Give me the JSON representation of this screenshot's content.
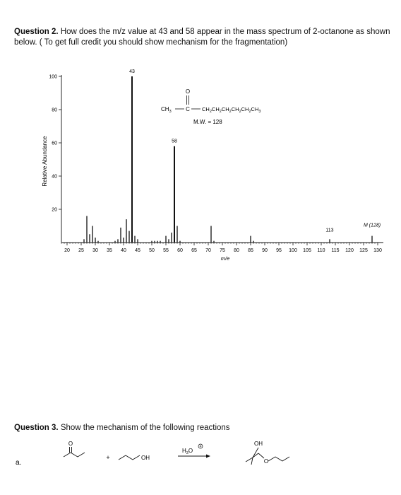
{
  "question2": {
    "label": "Question 2.",
    "text": "How does the m/z value at 43 and 58 appear in the mass spectrum of 2-octanone as shown below. ( To get full credit you should show mechanism for the fragmentation)"
  },
  "molecule": {
    "formula_left": "CH",
    "formula_left_sub": "3",
    "carbonyl_c": "C",
    "oxygen": "O",
    "chain_parts": [
      "CH",
      "2",
      "CH",
      "2",
      "CH",
      "2",
      "CH",
      "2",
      "CH",
      "2",
      "CH",
      "3"
    ],
    "mw": "M.W. = 128"
  },
  "chart_data": {
    "type": "bar",
    "xlabel": "m/e",
    "ylabel": "Relative Abundance",
    "xlim": [
      18,
      132
    ],
    "ylim": [
      0,
      100
    ],
    "x_ticks": [
      20,
      25,
      30,
      35,
      40,
      45,
      50,
      55,
      60,
      65,
      70,
      75,
      80,
      85,
      90,
      95,
      100,
      105,
      110,
      115,
      120,
      125,
      130
    ],
    "y_ticks": [
      20,
      40,
      60,
      80,
      100
    ],
    "peaks": [
      {
        "x": 26,
        "y": 2
      },
      {
        "x": 27,
        "y": 16
      },
      {
        "x": 28,
        "y": 5
      },
      {
        "x": 29,
        "y": 10
      },
      {
        "x": 30,
        "y": 3
      },
      {
        "x": 31,
        "y": 1
      },
      {
        "x": 37,
        "y": 1
      },
      {
        "x": 38,
        "y": 2
      },
      {
        "x": 39,
        "y": 9
      },
      {
        "x": 40,
        "y": 3
      },
      {
        "x": 41,
        "y": 14
      },
      {
        "x": 42,
        "y": 7
      },
      {
        "x": 43,
        "y": 100
      },
      {
        "x": 44,
        "y": 4
      },
      {
        "x": 45,
        "y": 2
      },
      {
        "x": 50,
        "y": 1
      },
      {
        "x": 51,
        "y": 1
      },
      {
        "x": 52,
        "y": 1
      },
      {
        "x": 53,
        "y": 1
      },
      {
        "x": 55,
        "y": 4
      },
      {
        "x": 56,
        "y": 2
      },
      {
        "x": 57,
        "y": 6
      },
      {
        "x": 58,
        "y": 58
      },
      {
        "x": 59,
        "y": 10
      },
      {
        "x": 60,
        "y": 1
      },
      {
        "x": 71,
        "y": 10
      },
      {
        "x": 72,
        "y": 1
      },
      {
        "x": 85,
        "y": 4
      },
      {
        "x": 86,
        "y": 1
      },
      {
        "x": 113,
        "y": 2
      },
      {
        "x": 128,
        "y": 4
      }
    ],
    "annotations": [
      {
        "x": 43,
        "text": "43"
      },
      {
        "x": 58,
        "text": "58"
      },
      {
        "x": 113,
        "text": "113"
      },
      {
        "x": 128,
        "text": "M (128)"
      }
    ]
  },
  "question3": {
    "label": "Question 3.",
    "text": "Show the mechanism of the following reactions"
  },
  "reaction": {
    "part_label": "a.",
    "ketone_o": "O",
    "plus": "+",
    "alcohol_oh": "OH",
    "reagent_main": "H",
    "reagent_sub": "3",
    "reagent_o": "O",
    "product_oh": "OH",
    "product_o": "O"
  }
}
